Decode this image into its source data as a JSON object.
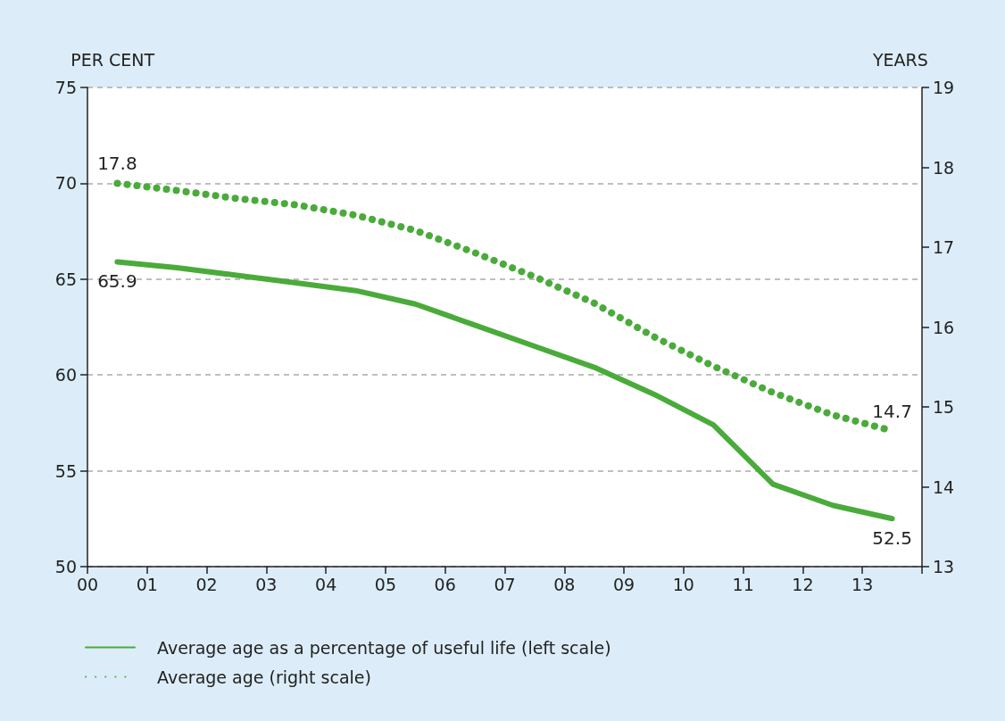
{
  "chart_data": {
    "type": "line",
    "ylabel": "PER CENT",
    "y2label": "YEARS",
    "x": [
      0.5,
      1.5,
      2.5,
      3.5,
      4.5,
      5.5,
      6.5,
      7.5,
      8.5,
      9.5,
      10.5,
      11.5,
      12.5,
      13.5
    ],
    "xlim": [
      0,
      14
    ],
    "xticks": [
      {
        "value": 0,
        "label": "00"
      },
      {
        "value": 1,
        "label": "01"
      },
      {
        "value": 2,
        "label": "02"
      },
      {
        "value": 3,
        "label": "03"
      },
      {
        "value": 4,
        "label": "04"
      },
      {
        "value": 5,
        "label": "05"
      },
      {
        "value": 6,
        "label": "06"
      },
      {
        "value": 7,
        "label": "07"
      },
      {
        "value": 8,
        "label": "08"
      },
      {
        "value": 9,
        "label": "09"
      },
      {
        "value": 10,
        "label": "10"
      },
      {
        "value": 11,
        "label": "11"
      },
      {
        "value": 12,
        "label": "12"
      },
      {
        "value": 13,
        "label": "13"
      },
      {
        "value": 14,
        "label": null
      }
    ],
    "ylim": [
      50,
      75
    ],
    "yticks": [
      50,
      55,
      60,
      65,
      70,
      75
    ],
    "y2lim": [
      13,
      19
    ],
    "y2ticks": [
      13,
      14,
      15,
      16,
      17,
      18,
      19
    ],
    "series": [
      {
        "name": "Average age as a percentage of useful life (left scale)",
        "color": "#4aab3a",
        "line_style": "solid",
        "values": [
          65.9,
          65.6,
          65.2,
          64.8,
          64.4,
          63.7,
          62.6,
          61.5,
          60.4,
          59.0,
          57.4,
          54.3,
          53.2,
          52.5
        ],
        "value_labels": [
          "65.9",
          null,
          null,
          null,
          null,
          null,
          null,
          null,
          null,
          null,
          null,
          null,
          null,
          "52.5"
        ]
      },
      {
        "name": "Average age (right scale)",
        "color": "#4aab3a",
        "line_style": "dotted",
        "axis": "y2",
        "values": [
          17.8,
          17.71,
          17.61,
          17.53,
          17.4,
          17.21,
          16.93,
          16.63,
          16.3,
          15.88,
          15.51,
          15.18,
          14.9,
          14.7
        ],
        "value_labels": [
          "17.8",
          null,
          null,
          null,
          null,
          null,
          null,
          null,
          null,
          null,
          null,
          null,
          null,
          "14.7"
        ]
      }
    ],
    "grid": "y",
    "marker": "none",
    "legend": "bottom left"
  }
}
